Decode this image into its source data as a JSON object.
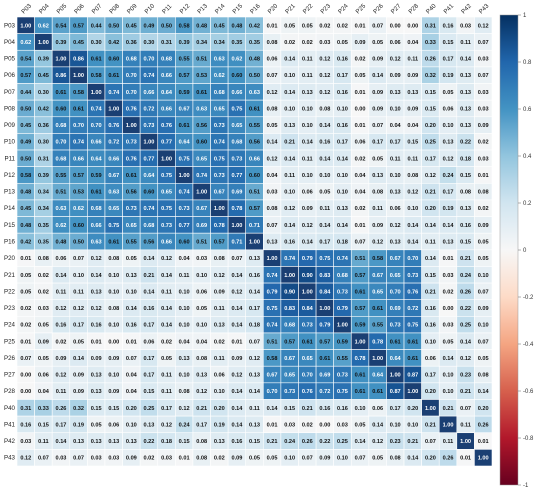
{
  "chart_data": {
    "type": "heatmap",
    "title": "",
    "xlabel": "",
    "ylabel": "",
    "variables": [
      "P03",
      "P04",
      "P05",
      "P06",
      "P07",
      "P08",
      "P09",
      "P10",
      "P11",
      "P12",
      "P13",
      "P14",
      "P15",
      "P16",
      "P20",
      "P21",
      "P22",
      "P23",
      "P24",
      "P25",
      "P26",
      "P27",
      "P28",
      "P40",
      "P41",
      "P42",
      "P43"
    ],
    "matrix": [
      [
        1.0,
        0.62,
        0.54,
        0.57,
        0.44,
        0.5,
        0.45,
        0.49,
        0.5,
        0.58,
        0.48,
        0.45,
        0.48,
        0.42,
        0.01,
        0.05,
        0.05,
        0.02,
        0.02,
        0.01,
        0.07,
        0.0,
        0.0,
        0.31,
        0.16,
        0.03,
        0.12
      ],
      [
        0.62,
        1.0,
        0.39,
        0.45,
        0.3,
        0.42,
        0.36,
        0.3,
        0.31,
        0.39,
        0.34,
        0.34,
        0.35,
        0.35,
        0.08,
        0.02,
        0.02,
        0.03,
        0.05,
        0.09,
        0.05,
        0.06,
        0.04,
        0.33,
        0.15,
        0.11,
        0.07
      ],
      [
        0.54,
        0.39,
        1.0,
        0.86,
        0.61,
        0.6,
        0.68,
        0.7,
        0.68,
        0.55,
        0.51,
        0.63,
        0.62,
        0.48,
        0.06,
        0.14,
        0.11,
        0.12,
        0.16,
        0.02,
        0.09,
        0.12,
        0.11,
        0.26,
        0.17,
        0.14,
        0.03
      ],
      [
        0.57,
        0.45,
        0.86,
        1.0,
        0.58,
        0.61,
        0.7,
        0.74,
        0.66,
        0.57,
        0.53,
        0.62,
        0.6,
        0.5,
        0.07,
        0.1,
        0.11,
        0.12,
        0.17,
        0.05,
        0.14,
        0.09,
        0.09,
        0.32,
        0.19,
        0.13,
        0.07
      ],
      [
        0.44,
        0.3,
        0.61,
        0.58,
        1.0,
        0.74,
        0.7,
        0.66,
        0.64,
        0.59,
        0.61,
        0.68,
        0.66,
        0.63,
        0.12,
        0.14,
        0.13,
        0.12,
        0.16,
        0.01,
        0.09,
        0.13,
        0.13,
        0.15,
        0.05,
        0.13,
        0.03
      ],
      [
        0.5,
        0.42,
        0.6,
        0.61,
        0.74,
        1.0,
        0.76,
        0.72,
        0.66,
        0.67,
        0.63,
        0.65,
        0.75,
        0.61,
        0.08,
        0.1,
        0.1,
        0.08,
        0.1,
        0.0,
        0.09,
        0.1,
        0.09,
        0.15,
        0.06,
        0.13,
        0.03
      ],
      [
        0.45,
        0.36,
        0.68,
        0.7,
        0.7,
        0.76,
        1.0,
        0.73,
        0.76,
        0.61,
        0.56,
        0.73,
        0.65,
        0.55,
        0.05,
        0.13,
        0.1,
        0.14,
        0.16,
        0.01,
        0.07,
        0.04,
        0.04,
        0.2,
        0.1,
        0.13,
        0.09
      ],
      [
        0.49,
        0.3,
        0.7,
        0.74,
        0.66,
        0.72,
        0.73,
        1.0,
        0.77,
        0.64,
        0.6,
        0.74,
        0.68,
        0.56,
        0.14,
        0.21,
        0.14,
        0.16,
        0.17,
        0.06,
        0.17,
        0.17,
        0.15,
        0.25,
        0.13,
        0.22,
        0.02
      ],
      [
        0.5,
        0.31,
        0.68,
        0.66,
        0.64,
        0.66,
        0.76,
        0.77,
        1.0,
        0.75,
        0.65,
        0.75,
        0.73,
        0.66,
        0.12,
        0.14,
        0.11,
        0.14,
        0.14,
        0.02,
        0.05,
        0.11,
        0.11,
        0.17,
        0.12,
        0.18,
        0.03
      ],
      [
        0.58,
        0.39,
        0.55,
        0.57,
        0.59,
        0.67,
        0.61,
        0.64,
        0.75,
        1.0,
        0.74,
        0.73,
        0.77,
        0.6,
        0.04,
        0.11,
        0.1,
        0.1,
        0.1,
        0.04,
        0.13,
        0.1,
        0.08,
        0.12,
        0.24,
        0.15,
        0.01
      ],
      [
        0.48,
        0.34,
        0.51,
        0.53,
        0.61,
        0.63,
        0.56,
        0.6,
        0.65,
        0.74,
        1.0,
        0.67,
        0.69,
        0.51,
        0.03,
        0.1,
        0.06,
        0.05,
        0.1,
        0.04,
        0.08,
        0.13,
        0.12,
        0.21,
        0.17,
        0.08,
        0.08
      ],
      [
        0.45,
        0.34,
        0.63,
        0.62,
        0.68,
        0.65,
        0.73,
        0.74,
        0.75,
        0.73,
        0.67,
        1.0,
        0.78,
        0.57,
        0.08,
        0.12,
        0.09,
        0.11,
        0.13,
        0.02,
        0.11,
        0.06,
        0.1,
        0.2,
        0.19,
        0.13,
        0.02
      ],
      [
        0.48,
        0.35,
        0.62,
        0.6,
        0.66,
        0.75,
        0.65,
        0.68,
        0.73,
        0.77,
        0.69,
        0.78,
        1.0,
        0.71,
        0.07,
        0.14,
        0.12,
        0.14,
        0.14,
        0.01,
        0.09,
        0.12,
        0.14,
        0.14,
        0.14,
        0.16,
        0.09
      ],
      [
        0.42,
        0.35,
        0.48,
        0.5,
        0.63,
        0.61,
        0.55,
        0.56,
        0.66,
        0.6,
        0.51,
        0.57,
        0.71,
        1.0,
        0.13,
        0.16,
        0.14,
        0.17,
        0.18,
        0.07,
        0.12,
        0.13,
        0.14,
        0.11,
        0.13,
        0.15,
        0.05
      ],
      [
        0.01,
        0.08,
        0.06,
        0.07,
        0.12,
        0.08,
        0.05,
        0.14,
        0.12,
        0.04,
        0.03,
        0.08,
        0.07,
        0.13,
        1.0,
        0.74,
        0.79,
        0.75,
        0.74,
        0.51,
        0.58,
        0.67,
        0.7,
        0.14,
        0.01,
        0.21,
        0.05
      ],
      [
        0.05,
        0.02,
        0.14,
        0.1,
        0.14,
        0.1,
        0.13,
        0.21,
        0.14,
        0.11,
        0.1,
        0.12,
        0.14,
        0.16,
        0.74,
        1.0,
        0.9,
        0.83,
        0.68,
        0.57,
        0.67,
        0.65,
        0.73,
        0.15,
        0.03,
        0.24,
        0.1
      ],
      [
        0.05,
        0.02,
        0.11,
        0.11,
        0.13,
        0.1,
        0.1,
        0.14,
        0.11,
        0.1,
        0.06,
        0.09,
        0.12,
        0.14,
        0.79,
        0.9,
        1.0,
        0.84,
        0.73,
        0.61,
        0.65,
        0.7,
        0.76,
        0.21,
        0.02,
        0.26,
        0.07
      ],
      [
        0.02,
        0.03,
        0.12,
        0.12,
        0.12,
        0.08,
        0.14,
        0.16,
        0.14,
        0.1,
        0.05,
        0.11,
        0.14,
        0.17,
        0.75,
        0.83,
        0.84,
        1.0,
        0.79,
        0.57,
        0.61,
        0.69,
        0.72,
        0.16,
        0.0,
        0.22,
        0.09
      ],
      [
        0.02,
        0.05,
        0.16,
        0.17,
        0.16,
        0.1,
        0.16,
        0.17,
        0.14,
        0.1,
        0.1,
        0.13,
        0.14,
        0.18,
        0.74,
        0.68,
        0.73,
        0.79,
        1.0,
        0.59,
        0.55,
        0.73,
        0.75,
        0.16,
        0.03,
        0.25,
        0.1
      ],
      [
        0.01,
        0.09,
        0.02,
        0.05,
        0.01,
        0.0,
        0.01,
        0.06,
        0.02,
        0.04,
        0.04,
        0.02,
        0.01,
        0.07,
        0.51,
        0.57,
        0.61,
        0.57,
        0.59,
        1.0,
        0.78,
        0.61,
        0.61,
        0.1,
        0.05,
        0.14,
        0.07
      ],
      [
        0.07,
        0.05,
        0.09,
        0.14,
        0.09,
        0.09,
        0.07,
        0.17,
        0.05,
        0.13,
        0.08,
        0.11,
        0.09,
        0.12,
        0.58,
        0.67,
        0.65,
        0.61,
        0.55,
        0.78,
        1.0,
        0.64,
        0.61,
        0.06,
        0.14,
        0.12,
        0.05
      ],
      [
        0.0,
        0.06,
        0.12,
        0.09,
        0.13,
        0.1,
        0.04,
        0.17,
        0.11,
        0.1,
        0.13,
        0.06,
        0.12,
        0.13,
        0.67,
        0.65,
        0.7,
        0.69,
        0.73,
        0.61,
        0.64,
        1.0,
        0.87,
        0.17,
        0.1,
        0.23,
        0.08
      ],
      [
        0.0,
        0.04,
        0.11,
        0.09,
        0.13,
        0.09,
        0.04,
        0.15,
        0.11,
        0.08,
        0.12,
        0.1,
        0.14,
        0.14,
        0.7,
        0.73,
        0.76,
        0.72,
        0.75,
        0.61,
        0.61,
        0.87,
        1.0,
        0.2,
        0.1,
        0.21,
        0.14
      ],
      [
        0.31,
        0.33,
        0.26,
        0.32,
        0.15,
        0.15,
        0.2,
        0.25,
        0.17,
        0.12,
        0.21,
        0.2,
        0.14,
        0.11,
        0.14,
        0.15,
        0.21,
        0.16,
        0.16,
        0.1,
        0.06,
        0.17,
        0.2,
        1.0,
        0.21,
        0.07,
        0.2
      ],
      [
        0.16,
        0.15,
        0.17,
        0.19,
        0.05,
        0.06,
        0.1,
        0.13,
        0.12,
        0.24,
        0.17,
        0.19,
        0.14,
        0.13,
        0.01,
        0.03,
        0.02,
        0.0,
        0.03,
        0.05,
        0.14,
        0.1,
        0.1,
        0.21,
        1.0,
        0.11,
        0.26
      ],
      [
        0.03,
        0.11,
        0.14,
        0.13,
        0.13,
        0.13,
        0.13,
        0.22,
        0.18,
        0.15,
        0.08,
        0.13,
        0.16,
        0.15,
        0.21,
        0.24,
        0.26,
        0.22,
        0.25,
        0.14,
        0.12,
        0.23,
        0.21,
        0.07,
        0.11,
        1.0,
        0.01
      ],
      [
        0.12,
        0.07,
        0.03,
        0.07,
        0.03,
        0.03,
        0.09,
        0.02,
        0.03,
        0.01,
        0.08,
        0.02,
        0.09,
        0.05,
        0.05,
        0.1,
        0.07,
        0.09,
        0.1,
        0.07,
        0.05,
        0.08,
        0.14,
        0.2,
        0.26,
        0.01,
        1.0
      ]
    ],
    "value_range": [
      -1,
      1
    ],
    "colorbar_ticks": [
      "1",
      "0.8",
      "0.6",
      "0.4",
      "0.2",
      "0",
      "-0.2",
      "-0.4",
      "-0.6",
      "-0.8",
      "-1"
    ],
    "colorbar_values": [
      1,
      0.8,
      0.6,
      0.4,
      0.2,
      0,
      -0.2,
      -0.4,
      -0.6,
      -0.8,
      -1
    ],
    "legend_position": "right",
    "grid": true,
    "colors": {
      "positive_max": "#053061",
      "positive_mid": "#2166ac",
      "neutral": "#f7f7f7",
      "negative_mid": "#d6604d",
      "negative_max": "#67001f",
      "diagonal": "#1a3f73"
    }
  }
}
